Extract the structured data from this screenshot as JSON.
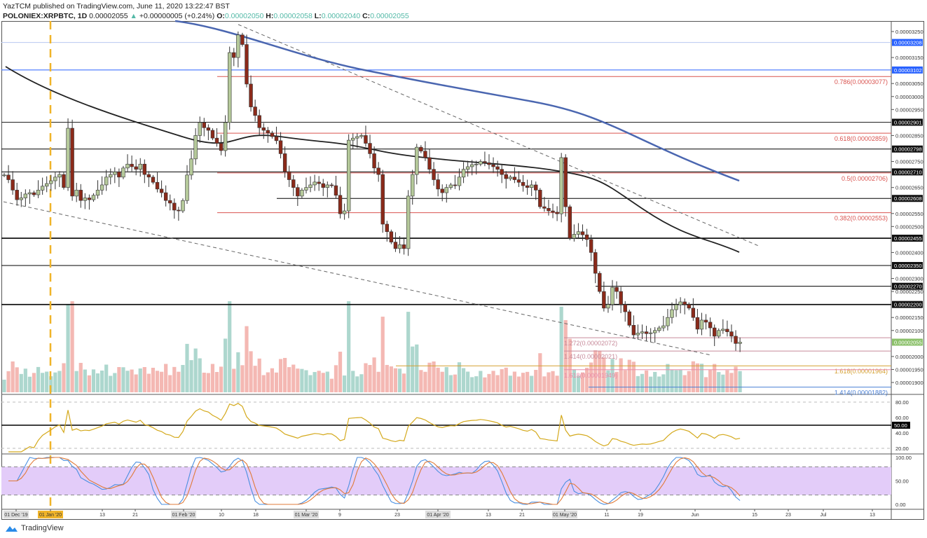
{
  "header": {
    "line1": "YazTCM published on TradingView.com, June 11, 2020 13:22:47 BST",
    "symbol": "POLONIEX:XRPBTC, 1D",
    "last": "0.00002055",
    "change": "+0.00000005 (+0.24%)",
    "o_label": "O:",
    "o": "0.00002050",
    "h_label": "H:",
    "h": "0.00002058",
    "l_label": "L:",
    "l": "0.00002040",
    "c_label": "C:",
    "c": "0.00002055"
  },
  "brand": "TradingView",
  "colors": {
    "up": "#b5c99a",
    "down": "#8b2a1a",
    "ma200": "#4a66b0",
    "ma100": "#222222",
    "rsi": "#d4a91c",
    "stoch_k": "#4a8fe0",
    "stoch_d": "#e07b39",
    "stoch_band": "#e3ccf9",
    "last_price": "#8bc06a"
  },
  "chart_data": {
    "type": "candlestick",
    "start_date": "2019-12-21",
    "interval": "1D",
    "closes": [
      2698,
      2680,
      2640,
      2603,
      2610,
      2625,
      2630,
      2622,
      2640,
      2655,
      2665,
      2676,
      2690,
      2700,
      2650,
      2878,
      2617,
      2640,
      2600,
      2610,
      2603,
      2620,
      2640,
      2660,
      2690,
      2700,
      2710,
      2690,
      2725,
      2740,
      2730,
      2720,
      2740,
      2700,
      2690,
      2670,
      2644,
      2630,
      2600,
      2590,
      2563,
      2560,
      2600,
      2698,
      2760,
      2850,
      2900,
      2880,
      2870,
      2840,
      2820,
      2792,
      2900,
      3169,
      3150,
      3237,
      3200,
      3048,
      2960,
      2927,
      2880,
      2870,
      2860,
      2846,
      2830,
      2780,
      2711,
      2680,
      2650,
      2617,
      2640,
      2650,
      2660,
      2671,
      2665,
      2650,
      2660,
      2657,
      2620,
      2549,
      2560,
      2832,
      2840,
      2846,
      2850,
      2820,
      2780,
      2725,
      2700,
      2509,
      2480,
      2440,
      2415,
      2430,
      2415,
      2617,
      2700,
      2805,
      2790,
      2765,
      2720,
      2680,
      2644,
      2630,
      2650,
      2660,
      2657,
      2690,
      2720,
      2730,
      2738,
      2740,
      2750,
      2745,
      2738,
      2730,
      2720,
      2700,
      2684,
      2690,
      2680,
      2670,
      2657,
      2650,
      2660,
      2640,
      2576,
      2570,
      2560,
      2555,
      2549,
      2765,
      2576,
      2455,
      2470,
      2480,
      2468,
      2450,
      2400,
      2320,
      2250,
      2186,
      2200,
      2266,
      2250,
      2200,
      2172,
      2120,
      2083,
      2090,
      2095,
      2088,
      2091,
      2100,
      2110,
      2118,
      2150,
      2180,
      2199,
      2210,
      2200,
      2186,
      2150,
      2105,
      2140,
      2132,
      2110,
      2078,
      2100,
      2105,
      2095,
      2078,
      2050,
      2055
    ],
    "price_unit": "0.00000001 BTC",
    "y_ticks": [
      "0.00003250",
      "0.00003150",
      "0.00003050",
      "0.00003000",
      "0.00002950",
      "0.00002850",
      "0.00002750",
      "0.00002650",
      "0.00002550",
      "0.00002500",
      "0.00002400",
      "0.00002300",
      "0.00002250",
      "0.00002150",
      "0.00002100",
      "0.00002000",
      "0.00001950",
      "0.00001900"
    ],
    "ylim": [
      1850,
      3300
    ],
    "levels": [
      {
        "price": 3208,
        "label": "0.00003208",
        "color": "#2962ff"
      },
      {
        "price": 3102,
        "label": "0.00003102",
        "color": "#2962ff"
      },
      {
        "price": 2901,
        "label": "0.00002901",
        "color": "#222"
      },
      {
        "price": 2798,
        "label": "0.00002798",
        "color": "#000"
      },
      {
        "price": 2710,
        "label": "0.00002710",
        "color": "#000"
      },
      {
        "price": 2608,
        "label": "0.00002608",
        "color": "#000"
      },
      {
        "price": 2455,
        "label": "0.00002455",
        "color": "#000"
      },
      {
        "price": 2350,
        "label": "0.00002350",
        "color": "#000"
      },
      {
        "price": 2270,
        "label": "0.00002270",
        "color": "#000"
      },
      {
        "price": 2200,
        "label": "0.00002200",
        "color": "#000"
      },
      {
        "price": 2055,
        "label": "0.00002055",
        "color": "#8bc06a"
      }
    ],
    "fibs": [
      {
        "price": 3077,
        "text": "0.786(0.00003077)",
        "color": "#d9534f",
        "side": "right"
      },
      {
        "price": 2859,
        "text": "0.618(0.00002859)",
        "color": "#d9534f",
        "side": "right"
      },
      {
        "price": 2706,
        "text": "0.5(0.00002706)",
        "color": "#d9534f",
        "side": "right"
      },
      {
        "price": 2553,
        "text": "0.382(0.00002553)",
        "color": "#d9534f",
        "side": "right"
      },
      {
        "price": 2072,
        "text": "1.272(0.00002072)",
        "color": "#c78a9a",
        "side": "left"
      },
      {
        "price": 2021,
        "text": "1.414(0.00002021)",
        "color": "#c78a9a",
        "side": "left"
      },
      {
        "price": 1964,
        "text": "1.618(0.00001964)",
        "color": "#d4a030",
        "side": "right"
      },
      {
        "price": 1949,
        "text": "1.618(0.00001949)",
        "color": "#e88aa8",
        "side": "left"
      },
      {
        "price": 1882,
        "text": "1.414(0.00001882)",
        "color": "#4a7fd4",
        "side": "right"
      }
    ],
    "x_ticks": [
      "01 Dec '19",
      "01 Jan '20",
      "13",
      "21",
      "01 Feb '20",
      "10",
      "18",
      "01 Mar '20",
      "9",
      "23",
      "01 Apr '20",
      "13",
      "21",
      "01 May '20",
      "11",
      "19",
      "Jun",
      "15",
      "23",
      "Jul",
      "13"
    ],
    "rsi_ticks": [
      "80.00",
      "60.00",
      "50.00",
      "40.00",
      "20.00"
    ],
    "stoch_ticks": [
      "100.00",
      "50.00",
      "0.00"
    ]
  }
}
